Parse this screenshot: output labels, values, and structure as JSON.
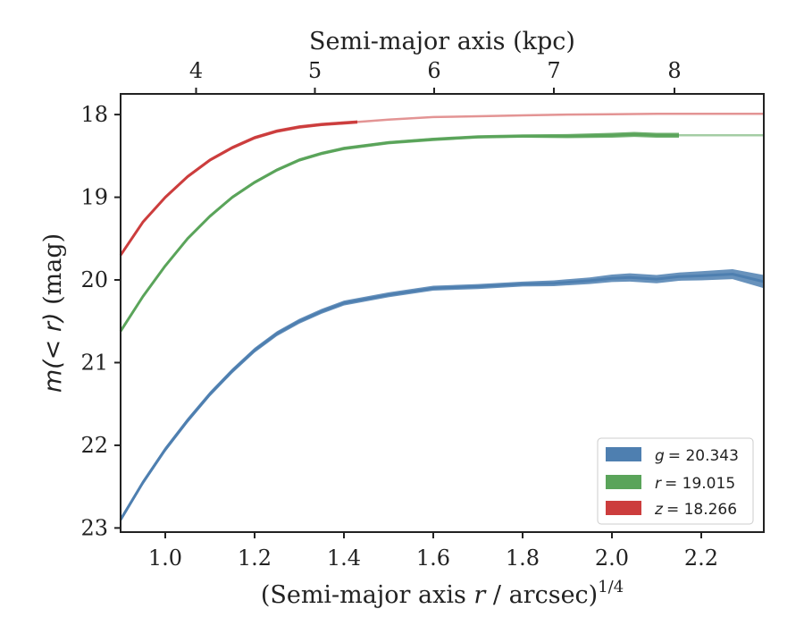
{
  "chart_data": {
    "type": "line",
    "xlabel": "(Semi-major axis r / arcsec)",
    "xlabel_main": "(Semi-major axis ",
    "xlabel_var": "r",
    "xlabel_tail": " / arcsec)",
    "xlabel_exponent": "1/4",
    "ylabel": "m(< r) (mag)",
    "ylabel_main": "m(< r)",
    "ylabel_unit": " (mag)",
    "top_xlabel": "Semi-major axis (kpc)",
    "xlim": [
      0.9,
      2.34
    ],
    "ylim": [
      23.05,
      17.75
    ],
    "y_inverted": true,
    "x_ticks": [
      1.0,
      1.2,
      1.4,
      1.6,
      1.8,
      2.0,
      2.2
    ],
    "x_tick_labels": [
      "1.0",
      "1.2",
      "1.4",
      "1.6",
      "1.8",
      "2.0",
      "2.2"
    ],
    "y_ticks": [
      18,
      19,
      20,
      21,
      22,
      23
    ],
    "y_tick_labels": [
      "18",
      "19",
      "20",
      "21",
      "22",
      "23"
    ],
    "top_ticks_x": [
      1.069,
      1.335,
      1.602,
      1.87,
      2.14
    ],
    "top_tick_labels": [
      "4",
      "5",
      "6",
      "7",
      "8"
    ],
    "grid": false,
    "legend_position": "lower-right",
    "series": [
      {
        "name": "g = 20.343",
        "legend_var": "g",
        "legend_value": "= 20.343",
        "color": "#4e7fb0",
        "x": [
          0.9,
          0.95,
          1.0,
          1.05,
          1.1,
          1.15,
          1.2,
          1.25,
          1.3,
          1.35,
          1.4,
          1.5,
          1.6,
          1.7,
          1.8,
          1.87,
          1.95,
          2.0,
          2.04,
          2.1,
          2.15,
          2.2,
          2.27,
          2.34
        ],
        "y": [
          22.9,
          22.45,
          22.05,
          21.7,
          21.38,
          21.1,
          20.85,
          20.65,
          20.5,
          20.38,
          20.28,
          20.18,
          20.1,
          20.08,
          20.05,
          20.04,
          20.01,
          19.98,
          19.97,
          19.99,
          19.96,
          19.95,
          19.93,
          20.02
        ],
        "band_halfwidth": [
          0.03,
          0.03,
          0.03,
          0.03,
          0.03,
          0.03,
          0.03,
          0.03,
          0.03,
          0.03,
          0.03,
          0.03,
          0.03,
          0.03,
          0.03,
          0.035,
          0.04,
          0.045,
          0.05,
          0.05,
          0.05,
          0.055,
          0.06,
          0.08
        ],
        "faint_x": [],
        "faint_y": []
      },
      {
        "name": "r = 19.015",
        "legend_var": "r",
        "legend_value": "= 19.015",
        "color": "#5aa45a",
        "x": [
          0.9,
          0.95,
          1.0,
          1.05,
          1.1,
          1.15,
          1.2,
          1.25,
          1.3,
          1.35,
          1.4,
          1.5,
          1.6,
          1.7,
          1.8,
          1.9,
          2.0,
          2.05,
          2.1,
          2.15
        ],
        "y": [
          20.62,
          20.2,
          19.83,
          19.5,
          19.23,
          19.0,
          18.82,
          18.67,
          18.55,
          18.47,
          18.41,
          18.34,
          18.3,
          18.27,
          18.26,
          18.26,
          18.25,
          18.24,
          18.25,
          18.25
        ],
        "band_halfwidth": [
          0.02,
          0.02,
          0.02,
          0.02,
          0.02,
          0.02,
          0.02,
          0.02,
          0.02,
          0.02,
          0.02,
          0.02,
          0.02,
          0.02,
          0.02,
          0.025,
          0.03,
          0.03,
          0.03,
          0.03
        ],
        "faint_x": [
          2.15,
          2.34
        ],
        "faint_y": [
          18.25,
          18.25
        ]
      },
      {
        "name": "z = 18.266",
        "legend_var": "z",
        "legend_value": "= 18.266",
        "color": "#cc3d3d",
        "x": [
          0.9,
          0.95,
          1.0,
          1.05,
          1.1,
          1.15,
          1.2,
          1.25,
          1.3,
          1.35,
          1.43
        ],
        "y": [
          19.7,
          19.3,
          19.0,
          18.75,
          18.55,
          18.4,
          18.28,
          18.2,
          18.15,
          18.12,
          18.09
        ],
        "band_halfwidth": [
          0.02,
          0.02,
          0.02,
          0.02,
          0.02,
          0.02,
          0.02,
          0.02,
          0.02,
          0.02,
          0.02
        ],
        "faint_x": [
          1.43,
          1.5,
          1.6,
          1.7,
          1.8,
          1.9,
          2.0,
          2.1,
          2.2,
          2.34
        ],
        "faint_y": [
          18.09,
          18.06,
          18.03,
          18.02,
          18.01,
          18.0,
          17.995,
          17.99,
          17.99,
          17.99
        ]
      }
    ]
  }
}
